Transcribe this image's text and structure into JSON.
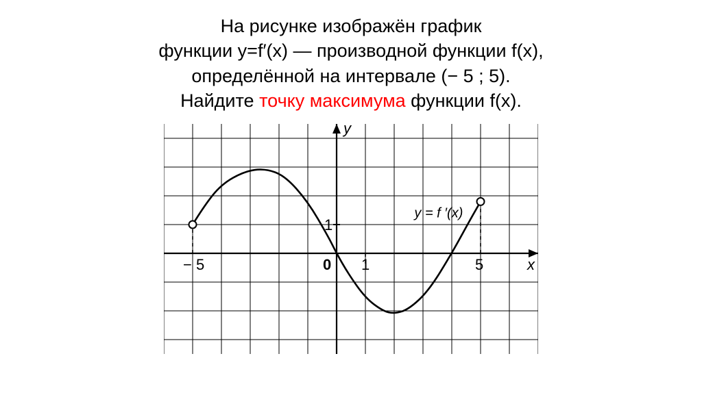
{
  "title": {
    "line1": "На рисунке изображён график",
    "line2_a": "функции y=f′(x) — производной функции f(x),",
    "line3": "определённой на интервале (− 5 ; 5).",
    "line4_a": "Найдите ",
    "line4_red": "точку максимума",
    "line4_b": " функции f(x)."
  },
  "chart": {
    "type": "line",
    "function_label": "y = f ′(x)",
    "axis_y_label": "y",
    "axis_x_label": "x",
    "tick_label_1": "1",
    "tick_label_0": "0",
    "tick_label_neg5": "− 5",
    "tick_label_5": "5",
    "grid": {
      "x_min": -6,
      "x_max": 7,
      "y_min": -3.5,
      "y_max": 4.5,
      "cell": 42
    },
    "colors": {
      "background": "#ffffff",
      "grid": "#000000",
      "axis": "#000000",
      "curve": "#000000",
      "text": "#000000",
      "open_point_fill": "#ffffff"
    },
    "stroke": {
      "grid_w": 1,
      "axis_w": 2.2,
      "curve_w": 2.6,
      "dash": "5,5"
    },
    "curve_points": [
      [
        -5,
        1
      ],
      [
        -4.6,
        1.65
      ],
      [
        -4.0,
        2.4
      ],
      [
        -3.2,
        2.85
      ],
      [
        -2.5,
        2.95
      ],
      [
        -1.8,
        2.7
      ],
      [
        -1.0,
        1.8
      ],
      [
        -0.3,
        0.6
      ],
      [
        0,
        0
      ],
      [
        0.4,
        -0.7
      ],
      [
        1.0,
        -1.55
      ],
      [
        1.6,
        -2.0
      ],
      [
        2.0,
        -2.1
      ],
      [
        2.5,
        -1.95
      ],
      [
        3.2,
        -1.3
      ],
      [
        4.0,
        0
      ],
      [
        4.6,
        1.1
      ],
      [
        5.0,
        1.8
      ]
    ],
    "open_points": [
      [
        -5,
        1
      ],
      [
        5,
        1.8
      ]
    ],
    "dashed_verticals": [
      {
        "x": -5,
        "y_from": 0,
        "y_to": 1
      },
      {
        "x": 5,
        "y_from": 0,
        "y_to": 1.8
      }
    ],
    "dashed_ticks": [
      {
        "x": 1,
        "y_from": 0,
        "y_to": -0.4
      }
    ]
  }
}
